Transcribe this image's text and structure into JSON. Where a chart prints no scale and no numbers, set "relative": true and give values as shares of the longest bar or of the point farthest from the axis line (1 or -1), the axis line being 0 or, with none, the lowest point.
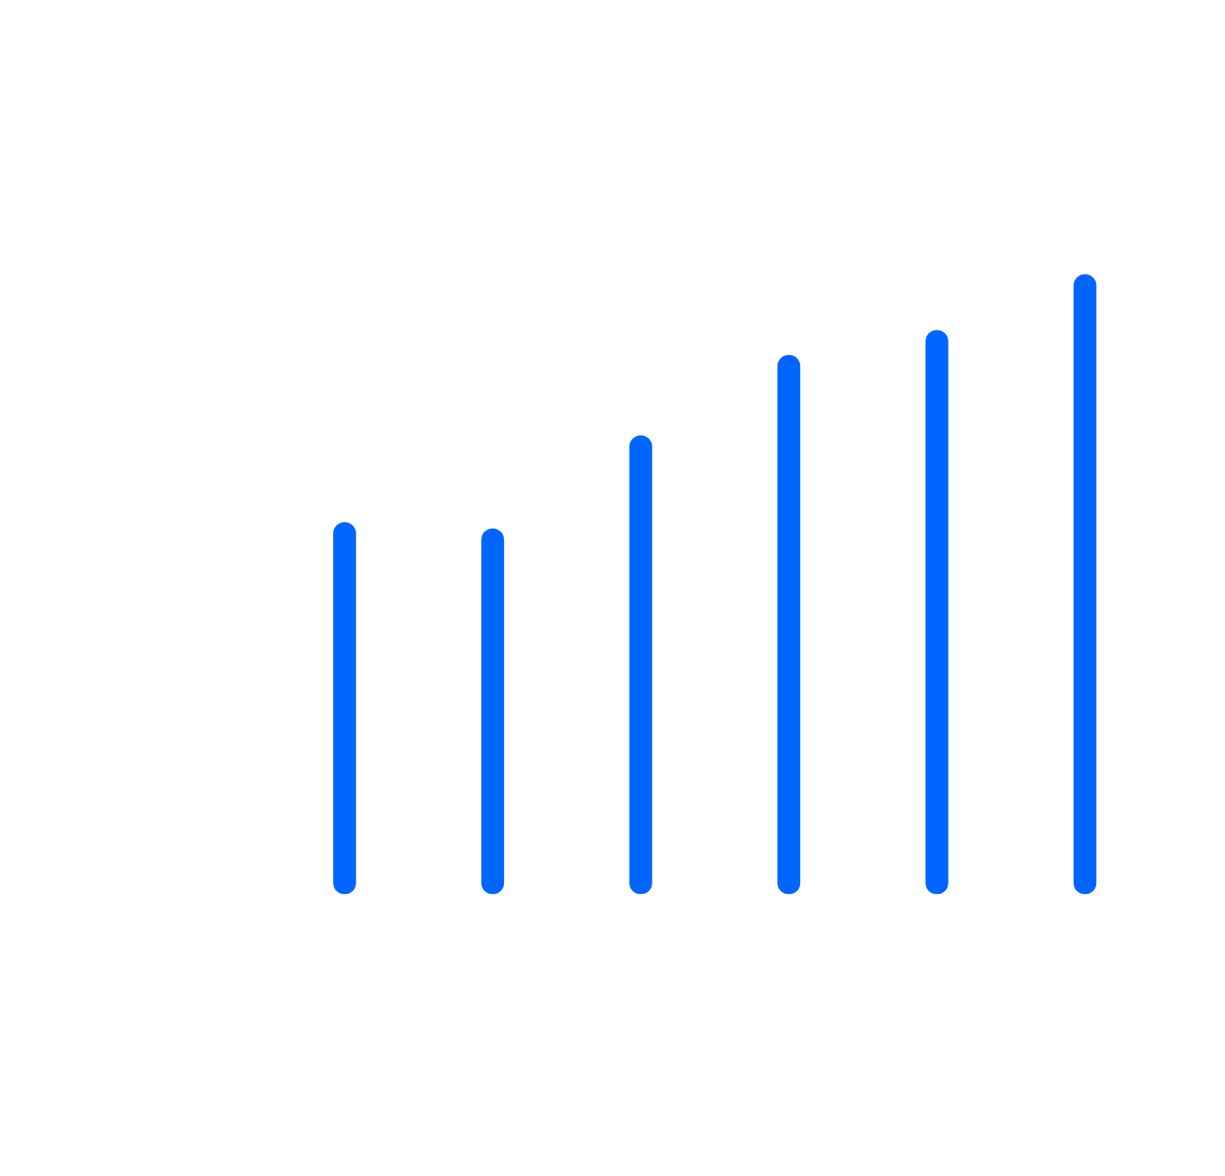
{
  "chart_data": {
    "type": "bar",
    "relative": true,
    "color": "#0066ff",
    "categories": [
      null,
      null,
      null,
      null,
      null,
      null
    ],
    "values": [
      0.6,
      0.59,
      0.74,
      0.87,
      0.91,
      1
    ]
  }
}
